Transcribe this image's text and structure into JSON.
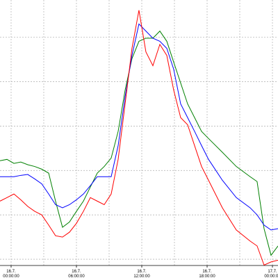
{
  "chart_data": {
    "type": "line",
    "x": [
      -1.02,
      -0.38,
      0.26,
      0.89,
      1.53,
      2.17,
      2.81,
      3.45,
      4.08,
      4.72,
      5.36,
      6.0,
      6.64,
      7.28,
      7.91,
      8.55,
      9.19,
      9.83,
      10.47,
      11.1,
      11.74,
      12.38,
      13.02,
      13.66,
      14.3,
      14.93,
      15.57,
      16.21,
      16.85,
      17.49,
      18.13,
      19.4,
      20.68,
      21.95,
      22.59,
      23.23,
      23.87,
      24.51
    ],
    "series": [
      {
        "color": "#008000",
        "values": [
          2.22,
          2.25,
          2.16,
          2.19,
          2.13,
          2.09,
          2.03,
          1.94,
          1.31,
          0.72,
          0.84,
          1.08,
          1.31,
          1.63,
          1.94,
          2.09,
          2.28,
          2.88,
          3.81,
          4.52,
          4.91,
          4.98,
          4.98,
          5.14,
          4.91,
          4.44,
          3.97,
          3.5,
          3.19,
          2.88,
          2.72,
          2.41,
          2.09,
          1.86,
          1.75,
          0.69,
          0.09,
          0.3
        ]
      },
      {
        "color": "#0000ff",
        "values": [
          1.86,
          1.86,
          1.86,
          1.89,
          1.91,
          1.81,
          1.7,
          1.47,
          1.23,
          1.16,
          1.23,
          1.34,
          1.47,
          1.66,
          1.86,
          1.86,
          1.86,
          2.56,
          3.66,
          4.59,
          5.3,
          5.14,
          4.98,
          4.91,
          4.75,
          4.28,
          3.5,
          3.19,
          2.88,
          2.56,
          2.25,
          1.78,
          1.39,
          1.16,
          1.0,
          0.77,
          0.66,
          0.69
        ]
      },
      {
        "color": "#ff0000",
        "values": [
          1.31,
          1.39,
          1.47,
          1.34,
          1.19,
          1.08,
          1.0,
          0.77,
          0.53,
          0.5,
          0.61,
          0.81,
          1.08,
          1.39,
          1.31,
          1.23,
          1.47,
          2.25,
          3.5,
          4.75,
          5.61,
          4.67,
          4.36,
          4.84,
          4.59,
          3.81,
          3.19,
          3.03,
          2.56,
          2.09,
          1.78,
          1.16,
          0.66,
          0.41,
          0.3,
          -0.13,
          -0.06,
          -0.02
        ]
      }
    ],
    "xlim": [
      -1.02,
      24.51
    ],
    "ylim": [
      -0.14,
      5.84
    ],
    "xticks": [
      {
        "value": 0,
        "label": [
          "16.7.",
          "00:00:00"
        ]
      },
      {
        "value": 6,
        "label": [
          "16.7.",
          "06:00:00"
        ]
      },
      {
        "value": 12,
        "label": [
          "16.7.",
          "12:00:00"
        ]
      },
      {
        "value": 18,
        "label": [
          "16.7.",
          "18:00:00"
        ]
      },
      {
        "value": 24,
        "label": [
          "17.7.",
          "00:00:00"
        ]
      }
    ],
    "xminor": [
      3,
      9,
      15,
      21
    ],
    "yticks": [
      0,
      1,
      2,
      3,
      4,
      5
    ],
    "grid": true
  }
}
